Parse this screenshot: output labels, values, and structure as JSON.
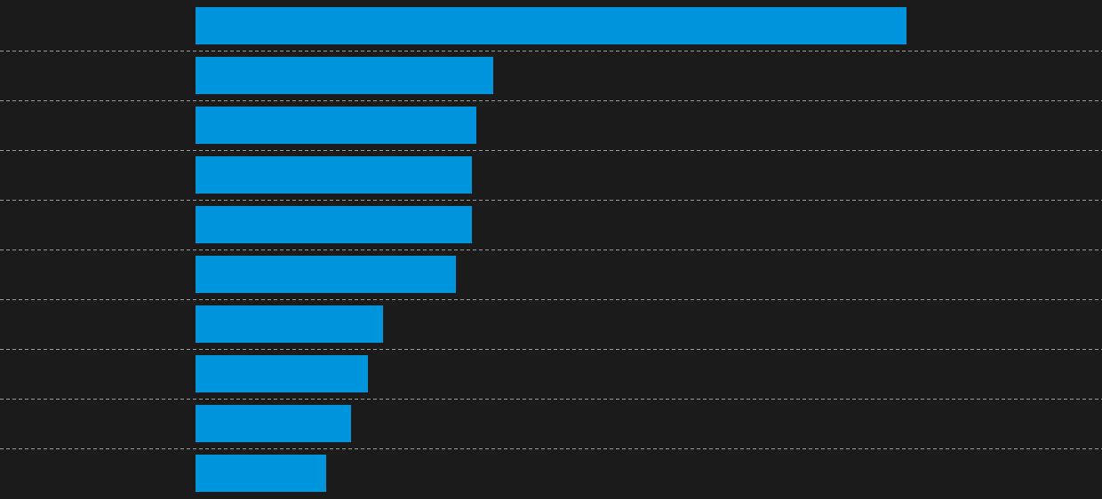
{
  "chart_data": {
    "type": "hbar",
    "categories": [
      null,
      null,
      null,
      null,
      null,
      null,
      null,
      null,
      null,
      null
    ],
    "values": [
      800,
      335,
      316,
      311,
      311,
      293,
      211,
      194,
      175,
      147
    ],
    "color": "#0094dc",
    "xlim": [
      0,
      1020
    ]
  }
}
